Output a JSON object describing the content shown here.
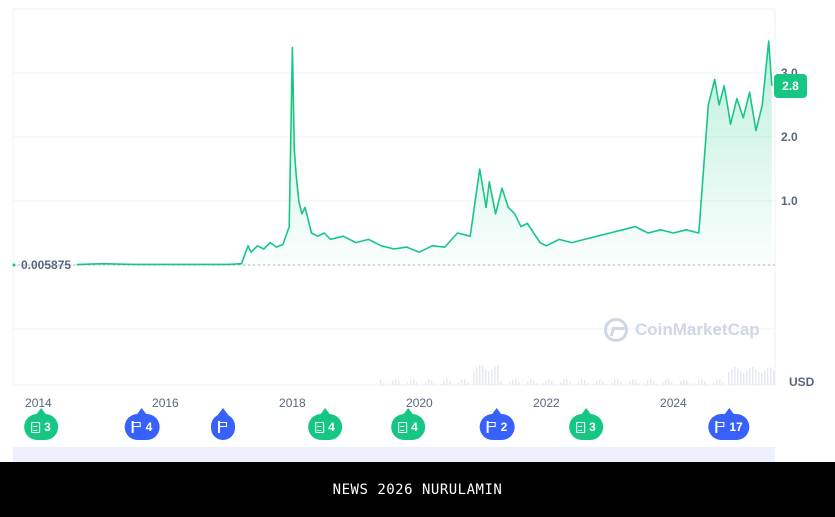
{
  "chart_data": {
    "type": "area",
    "currency_label": "USD",
    "current_price_label": "2.8",
    "baseline_label": "0.005875",
    "y_ticks": [
      {
        "value": 1.0,
        "label": "1.0"
      },
      {
        "value": 2.0,
        "label": "2.0"
      },
      {
        "value": 3.0,
        "label": "3.0"
      }
    ],
    "x_ticks": [
      "2014",
      "2016",
      "2018",
      "2020",
      "2022",
      "2024"
    ],
    "xlim": [
      2013.6,
      2025.6
    ],
    "ylim": [
      -2.0,
      4.0
    ],
    "line_color": "#16c784",
    "x": [
      2014.6,
      2015.0,
      2015.5,
      2016.0,
      2016.5,
      2017.0,
      2017.2,
      2017.3,
      2017.35,
      2017.45,
      2017.55,
      2017.65,
      2017.75,
      2017.85,
      2017.95,
      2018.0,
      2018.03,
      2018.06,
      2018.1,
      2018.15,
      2018.2,
      2018.3,
      2018.4,
      2018.5,
      2018.6,
      2018.8,
      2019.0,
      2019.2,
      2019.4,
      2019.6,
      2019.8,
      2020.0,
      2020.2,
      2020.4,
      2020.6,
      2020.8,
      2020.95,
      2021.05,
      2021.1,
      2021.2,
      2021.3,
      2021.4,
      2021.5,
      2021.6,
      2021.7,
      2021.8,
      2021.9,
      2022.0,
      2022.2,
      2022.4,
      2022.6,
      2022.8,
      2023.0,
      2023.2,
      2023.4,
      2023.6,
      2023.8,
      2024.0,
      2024.2,
      2024.4,
      2024.55,
      2024.65,
      2024.72,
      2024.8,
      2024.9,
      2025.0,
      2025.1,
      2025.2,
      2025.3,
      2025.4,
      2025.5,
      2025.55
    ],
    "values": [
      0.005875,
      0.02,
      0.01,
      0.01,
      0.01,
      0.01,
      0.02,
      0.3,
      0.2,
      0.3,
      0.25,
      0.35,
      0.28,
      0.32,
      0.6,
      3.4,
      1.8,
      1.4,
      1.0,
      0.8,
      0.9,
      0.5,
      0.45,
      0.5,
      0.4,
      0.45,
      0.35,
      0.4,
      0.3,
      0.25,
      0.28,
      0.2,
      0.3,
      0.28,
      0.5,
      0.45,
      1.5,
      0.9,
      1.3,
      0.8,
      1.2,
      0.9,
      0.8,
      0.6,
      0.65,
      0.5,
      0.35,
      0.3,
      0.4,
      0.35,
      0.4,
      0.45,
      0.5,
      0.55,
      0.6,
      0.5,
      0.55,
      0.5,
      0.55,
      0.5,
      2.5,
      2.9,
      2.5,
      2.8,
      2.2,
      2.6,
      2.3,
      2.7,
      2.1,
      2.5,
      3.5,
      2.8
    ]
  },
  "events": [
    {
      "type": "doc",
      "count": "3"
    },
    {
      "type": "flag",
      "count": "4"
    },
    {
      "type": "flag",
      "count": ""
    },
    {
      "type": "doc",
      "count": "4"
    },
    {
      "type": "doc",
      "count": "4"
    },
    {
      "type": "flag",
      "count": "2"
    },
    {
      "type": "doc",
      "count": "3"
    },
    {
      "type": "flag",
      "count": "17"
    }
  ],
  "watermark": "CoinMarketCap",
  "footer": {
    "text": "NEWS 2026 NURULAMIN"
  }
}
